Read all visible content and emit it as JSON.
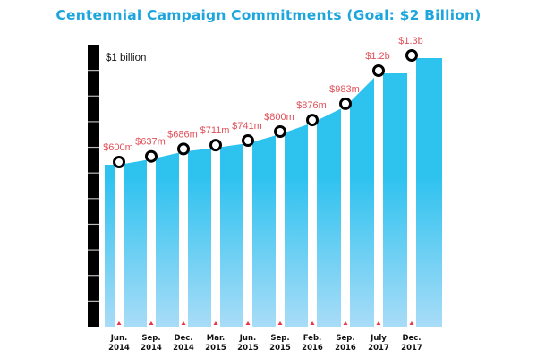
{
  "title": "Centennial Campaign Commitments (Goal: $2 Billion)",
  "chart_data": {
    "type": "area",
    "title": "Centennial Campaign Commitments (Goal: $2 Billion)",
    "xlabel": "",
    "ylabel": "",
    "y_axis_label": "$1 billion",
    "ylim": [
      0,
      1.5
    ],
    "unit": "billion USD",
    "grid": false,
    "categories": [
      [
        "Jun.",
        "2014"
      ],
      [
        "Sep.",
        "2014"
      ],
      [
        "Dec.",
        "2014"
      ],
      [
        "Mar.",
        "2015"
      ],
      [
        "Jun.",
        "2015"
      ],
      [
        "Sep.",
        "2015"
      ],
      [
        "Feb.",
        "2016"
      ],
      [
        "Sep.",
        "2016"
      ],
      [
        "July",
        "2017"
      ],
      [
        "Dec.",
        "2017"
      ]
    ],
    "values": [
      0.6,
      0.637,
      0.686,
      0.711,
      0.741,
      0.8,
      0.876,
      0.983,
      1.2,
      1.3
    ],
    "labels": [
      "$600m",
      "$637m",
      "$686m",
      "$711m",
      "$741m",
      "$800m",
      "$876m",
      "$983m",
      "$1.2b",
      "$1.3b"
    ],
    "colors": {
      "fill_top": "#2ec2ef",
      "fill_bottom": "#a8dcf7",
      "marker": "#000000",
      "value_label": "#e0505a",
      "title": "#1da6de",
      "tick_marker": "#e8344a"
    }
  }
}
